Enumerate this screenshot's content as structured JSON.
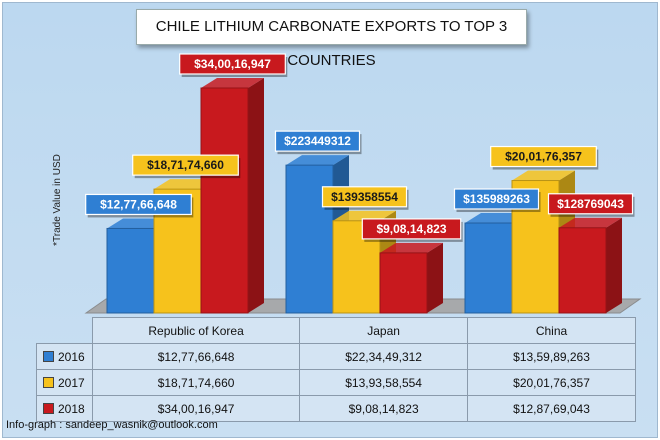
{
  "title": "CHILE LITHIUM CARBONATE EXPORTS TO TOP 3 COUNTRIES",
  "footer": "Info-graph : sandeep_wasnik@outlook.com",
  "colors": {
    "2016": "#2f7fd3",
    "2017": "#f6c21c",
    "2018": "#c8191e"
  },
  "chart_data": {
    "type": "bar",
    "title": "CHILE LITHIUM CARBONATE EXPORTS TO TOP 3 COUNTRIES",
    "ylabel": "*Trade Value in USD",
    "xlabel": "",
    "categories": [
      "Republic of Korea",
      "Japan",
      "China"
    ],
    "series": [
      {
        "name": "2016",
        "values": [
          127766648,
          223449312,
          135989263
        ],
        "labels": [
          "$12,77,66,648",
          "$223449312",
          "$135989263"
        ]
      },
      {
        "name": "2017",
        "values": [
          187174660,
          139358554,
          200176357
        ],
        "labels": [
          "$18,71,74,660",
          "$139358554",
          "$20,01,76,357"
        ]
      },
      {
        "name": "2018",
        "values": [
          340016947,
          90814823,
          128769043
        ],
        "labels": [
          "$34,00,16,947",
          "$9,08,14,823",
          "$128769043"
        ]
      }
    ],
    "ylim": [
      0,
      340016947
    ],
    "grid": false,
    "legend": "table-below"
  },
  "table": {
    "headers": [
      "Republic of Korea",
      "Japan",
      "China"
    ],
    "rows": [
      {
        "year": "2016",
        "cells": [
          "$12,77,66,648",
          "$22,34,49,312",
          "$13,59,89,263"
        ]
      },
      {
        "year": "2017",
        "cells": [
          "$18,71,74,660",
          "$13,93,58,554",
          "$20,01,76,357"
        ]
      },
      {
        "year": "2018",
        "cells": [
          "$34,00,16,947",
          "$9,08,14,823",
          "$12,87,69,043"
        ]
      }
    ]
  }
}
